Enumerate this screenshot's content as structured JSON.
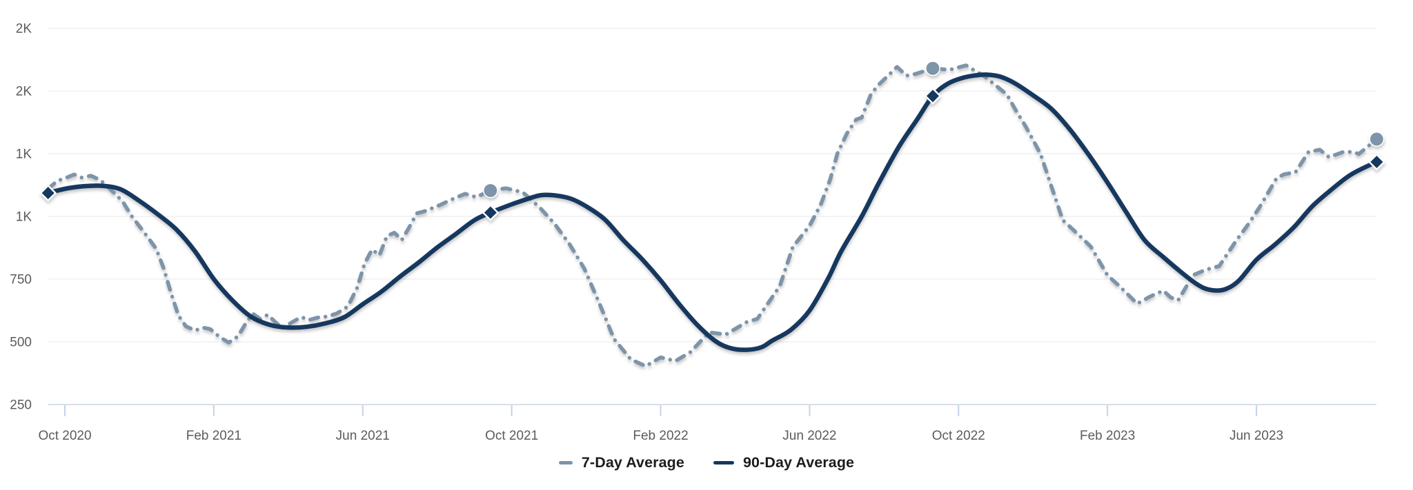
{
  "page": {
    "background": "#ffffff"
  },
  "legend": {
    "items": [
      {
        "label": "7-Day Average",
        "color": "#7d94a9",
        "swatch": "short-dash"
      },
      {
        "label": "90-Day Average",
        "color": "#12395f",
        "swatch": "long-dash"
      }
    ]
  },
  "axes": {
    "y_ticks": [
      {
        "value": 250,
        "label": "250"
      },
      {
        "value": 500,
        "label": "500"
      },
      {
        "value": 750,
        "label": "750"
      },
      {
        "value": 1000,
        "label": "1K"
      },
      {
        "value": 1250,
        "label": "1K"
      },
      {
        "value": 1500,
        "label": "2K"
      },
      {
        "value": 1750,
        "label": "2K"
      }
    ],
    "x_ticks": [
      {
        "m": 0,
        "label": "Oct 2020"
      },
      {
        "m": 4,
        "label": "Feb 2021"
      },
      {
        "m": 8,
        "label": "Jun 2021"
      },
      {
        "m": 12,
        "label": "Oct 2021"
      },
      {
        "m": 16,
        "label": "Feb 2022"
      },
      {
        "m": 20,
        "label": "Jun 2022"
      },
      {
        "m": 24,
        "label": "Oct 2022"
      },
      {
        "m": 28,
        "label": "Feb 2023"
      },
      {
        "m": 32,
        "label": "Jun 2023"
      }
    ]
  },
  "chart_data": {
    "type": "line",
    "title": "",
    "x_unit": "months since Oct 2020 tick (labels every 4 months)",
    "x_range_months": [
      -0.45,
      35.23
    ],
    "y_range": [
      250,
      1860
    ],
    "grid": "horizontal",
    "legend_position": "bottom-center",
    "colors": {
      "grid": "#e8e8e8",
      "axis_line": "#c9d5e3",
      "tick": "#c3d3e8",
      "axis_text": "#595b5e"
    },
    "series": [
      {
        "name": "7-Day Average",
        "style": "dashed",
        "color": "#7d94a9",
        "marker_shape": "circle",
        "markers": [
          [
            11.43,
            1103
          ],
          [
            23.31,
            1590
          ],
          [
            35.23,
            1308
          ]
        ],
        "points": [
          [
            -0.45,
            1110
          ],
          [
            -0.2,
            1142
          ],
          [
            0,
            1152
          ],
          [
            0.25,
            1167
          ],
          [
            0.45,
            1155
          ],
          [
            0.7,
            1162
          ],
          [
            0.95,
            1145
          ],
          [
            1.15,
            1118
          ],
          [
            1.3,
            1097
          ],
          [
            1.55,
            1060
          ],
          [
            1.8,
            1000
          ],
          [
            2.05,
            952
          ],
          [
            2.25,
            912
          ],
          [
            2.45,
            872
          ],
          [
            2.65,
            795
          ],
          [
            2.85,
            695
          ],
          [
            3.05,
            605
          ],
          [
            3.25,
            562
          ],
          [
            3.5,
            545
          ],
          [
            3.7,
            557
          ],
          [
            3.9,
            551
          ],
          [
            4.15,
            520
          ],
          [
            4.4,
            497
          ],
          [
            4.65,
            522
          ],
          [
            4.85,
            572
          ],
          [
            5.05,
            612
          ],
          [
            5.25,
            591
          ],
          [
            5.45,
            608
          ],
          [
            5.65,
            579
          ],
          [
            5.85,
            554
          ],
          [
            6.1,
            578
          ],
          [
            6.35,
            599
          ],
          [
            6.55,
            587
          ],
          [
            6.8,
            597
          ],
          [
            7.05,
            601
          ],
          [
            7.3,
            613
          ],
          [
            7.6,
            641
          ],
          [
            7.85,
            716
          ],
          [
            8.05,
            812
          ],
          [
            8.25,
            868
          ],
          [
            8.45,
            845
          ],
          [
            8.65,
            922
          ],
          [
            8.85,
            935
          ],
          [
            9.05,
            906
          ],
          [
            9.25,
            957
          ],
          [
            9.45,
            1012
          ],
          [
            9.65,
            1020
          ],
          [
            10.1,
            1047
          ],
          [
            10.35,
            1065
          ],
          [
            10.75,
            1090
          ],
          [
            11.05,
            1077
          ],
          [
            11.43,
            1103
          ],
          [
            11.85,
            1112
          ],
          [
            12.3,
            1096
          ],
          [
            12.75,
            1036
          ],
          [
            13.15,
            971
          ],
          [
            13.55,
            890
          ],
          [
            13.95,
            792
          ],
          [
            14.35,
            655
          ],
          [
            14.75,
            511
          ],
          [
            15.2,
            430
          ],
          [
            15.6,
            403
          ],
          [
            16,
            438
          ],
          [
            16.4,
            424
          ],
          [
            16.8,
            459
          ],
          [
            17.3,
            538
          ],
          [
            17.75,
            529
          ],
          [
            18.3,
            578
          ],
          [
            18.6,
            592
          ],
          [
            19.2,
            722
          ],
          [
            19.55,
            878
          ],
          [
            20,
            963
          ],
          [
            20.3,
            1047
          ],
          [
            20.55,
            1146
          ],
          [
            20.75,
            1252
          ],
          [
            21,
            1330
          ],
          [
            21.25,
            1386
          ],
          [
            21.4,
            1394
          ],
          [
            21.65,
            1488
          ],
          [
            21.85,
            1524
          ],
          [
            22.1,
            1560
          ],
          [
            22.35,
            1596
          ],
          [
            22.6,
            1561
          ],
          [
            22.85,
            1568
          ],
          [
            23.31,
            1590
          ],
          [
            23.75,
            1584
          ],
          [
            24.2,
            1602
          ],
          [
            24.7,
            1558
          ],
          [
            25.3,
            1486
          ],
          [
            25.55,
            1420
          ],
          [
            25.8,
            1360
          ],
          [
            26.2,
            1250
          ],
          [
            26.8,
            985
          ],
          [
            27.1,
            944
          ],
          [
            27.55,
            880
          ],
          [
            28,
            765
          ],
          [
            28.3,
            725
          ],
          [
            28.8,
            652
          ],
          [
            29.15,
            681
          ],
          [
            29.5,
            704
          ],
          [
            29.7,
            677
          ],
          [
            29.9,
            666
          ],
          [
            30.3,
            766
          ],
          [
            30.65,
            788
          ],
          [
            31,
            802
          ],
          [
            31.45,
            902
          ],
          [
            31.8,
            972
          ],
          [
            32.1,
            1040
          ],
          [
            32.55,
            1154
          ],
          [
            32.75,
            1168
          ],
          [
            33.05,
            1176
          ],
          [
            33.4,
            1257
          ],
          [
            33.7,
            1266
          ],
          [
            33.95,
            1236
          ],
          [
            34.35,
            1258
          ],
          [
            34.6,
            1257
          ],
          [
            34.75,
            1249
          ],
          [
            35.23,
            1308
          ]
        ]
      },
      {
        "name": "90-Day Average",
        "style": "solid",
        "color": "#12395f",
        "marker_shape": "diamond",
        "markers": [
          [
            -0.45,
            1093
          ],
          [
            11.43,
            1015
          ],
          [
            23.31,
            1480
          ],
          [
            35.23,
            1217
          ]
        ],
        "points": [
          [
            -0.45,
            1093
          ],
          [
            0,
            1110
          ],
          [
            0.5,
            1120
          ],
          [
            1,
            1122
          ],
          [
            1.5,
            1108
          ],
          [
            2,
            1062
          ],
          [
            2.5,
            1008
          ],
          [
            3,
            947
          ],
          [
            3.5,
            860
          ],
          [
            4,
            750
          ],
          [
            4.5,
            665
          ],
          [
            5,
            600
          ],
          [
            5.5,
            568
          ],
          [
            6,
            557
          ],
          [
            6.5,
            560
          ],
          [
            7,
            574
          ],
          [
            7.5,
            598
          ],
          [
            8,
            650
          ],
          [
            8.5,
            700
          ],
          [
            9,
            760
          ],
          [
            9.5,
            816
          ],
          [
            10,
            876
          ],
          [
            10.5,
            930
          ],
          [
            11,
            985
          ],
          [
            11.43,
            1015
          ],
          [
            12,
            1048
          ],
          [
            12.5,
            1073
          ],
          [
            12.8,
            1085
          ],
          [
            13.2,
            1083
          ],
          [
            13.6,
            1070
          ],
          [
            14,
            1040
          ],
          [
            14.5,
            988
          ],
          [
            15,
            905
          ],
          [
            15.5,
            830
          ],
          [
            16,
            745
          ],
          [
            16.5,
            650
          ],
          [
            17,
            565
          ],
          [
            17.5,
            500
          ],
          [
            17.9,
            474
          ],
          [
            18.3,
            468
          ],
          [
            18.7,
            478
          ],
          [
            19,
            505
          ],
          [
            19.5,
            548
          ],
          [
            20,
            625
          ],
          [
            20.5,
            753
          ],
          [
            20.85,
            861
          ],
          [
            21.4,
            1000
          ],
          [
            21.85,
            1130
          ],
          [
            22.4,
            1278
          ],
          [
            22.9,
            1389
          ],
          [
            23.31,
            1480
          ],
          [
            23.7,
            1528
          ],
          [
            24.1,
            1552
          ],
          [
            24.5,
            1563
          ],
          [
            24.75,
            1565
          ],
          [
            25.1,
            1558
          ],
          [
            25.5,
            1532
          ],
          [
            26,
            1483
          ],
          [
            26.5,
            1428
          ],
          [
            27,
            1345
          ],
          [
            27.5,
            1245
          ],
          [
            28,
            1135
          ],
          [
            28.5,
            1018
          ],
          [
            29,
            905
          ],
          [
            29.5,
            838
          ],
          [
            30,
            775
          ],
          [
            30.4,
            730
          ],
          [
            30.7,
            709
          ],
          [
            31.1,
            707
          ],
          [
            31.5,
            740
          ],
          [
            32,
            827
          ],
          [
            32.5,
            888
          ],
          [
            33,
            956
          ],
          [
            33.5,
            1040
          ],
          [
            34,
            1105
          ],
          [
            34.5,
            1163
          ],
          [
            35,
            1202
          ],
          [
            35.23,
            1217
          ]
        ]
      }
    ]
  }
}
